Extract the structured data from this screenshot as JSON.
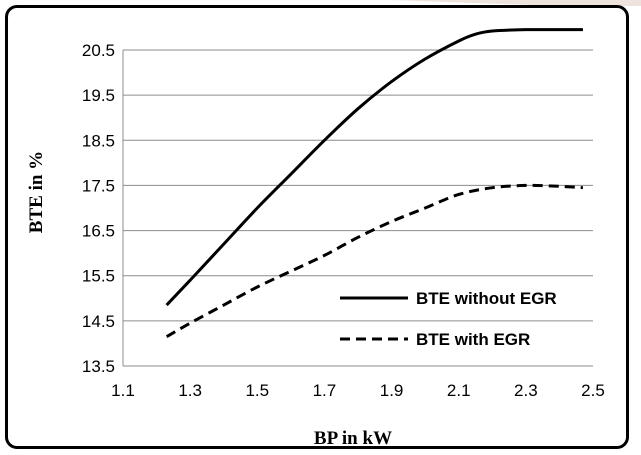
{
  "chart_data": {
    "type": "line",
    "xlabel": "BP in kW",
    "ylabel": "BTE in %",
    "xlim": [
      1.1,
      2.5
    ],
    "ylim": [
      13.5,
      20.5
    ],
    "xticks": [
      "1.1",
      "1.3",
      "1.5",
      "1.7",
      "1.9",
      "2.1",
      "2.3",
      "2.5"
    ],
    "yticks": [
      "13.5",
      "14.5",
      "15.5",
      "16.5",
      "17.5",
      "18.5",
      "19.5",
      "20.5"
    ],
    "grid": "horizontal",
    "legend_position": "bottom-right",
    "series": [
      {
        "name": "BTE without EGR",
        "style": "solid",
        "color": "#000000",
        "x": [
          1.23,
          1.3,
          1.4,
          1.5,
          1.6,
          1.7,
          1.8,
          1.9,
          2.0,
          2.1,
          2.15,
          2.2,
          2.3,
          2.4,
          2.47
        ],
        "y": [
          14.85,
          15.4,
          16.2,
          17.0,
          17.75,
          18.5,
          19.2,
          19.8,
          20.3,
          20.7,
          20.85,
          20.92,
          20.95,
          20.95,
          20.95
        ]
      },
      {
        "name": "BTE with EGR",
        "style": "dashed",
        "color": "#000000",
        "x": [
          1.23,
          1.3,
          1.4,
          1.5,
          1.6,
          1.7,
          1.8,
          1.9,
          2.0,
          2.1,
          2.2,
          2.3,
          2.4,
          2.47
        ],
        "y": [
          14.15,
          14.45,
          14.85,
          15.25,
          15.6,
          15.95,
          16.35,
          16.7,
          17.0,
          17.3,
          17.45,
          17.5,
          17.48,
          17.45
        ]
      }
    ]
  }
}
